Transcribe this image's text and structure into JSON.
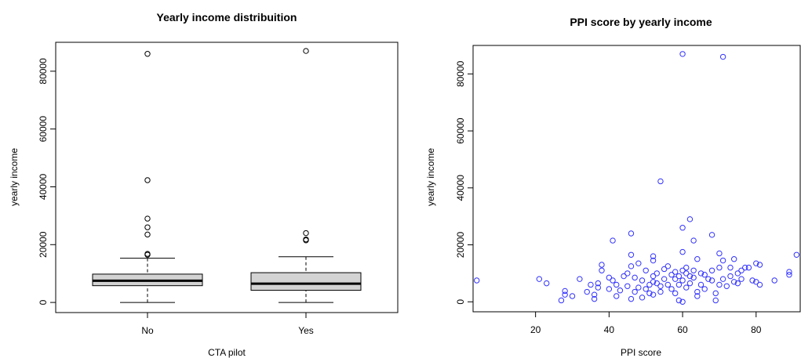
{
  "chart_data": [
    {
      "type": "box",
      "title": "Yearly income distribuition",
      "xlabel": "CTA pilot",
      "ylabel": "yearly income",
      "ylim": [
        -3500,
        90000
      ],
      "y_ticks": [
        "0",
        "20000",
        "40000",
        "60000",
        "80000"
      ],
      "categories": [
        "No",
        "Yes"
      ],
      "grid": false,
      "boxes": [
        {
          "category": "No",
          "min": 0,
          "q1": 5800,
          "median": 7500,
          "q3": 9800,
          "whisker_high": 15300,
          "outliers": [
            16500,
            16800,
            23500,
            26000,
            29000,
            42300,
            86000
          ]
        },
        {
          "category": "Yes",
          "min": 0,
          "q1": 4200,
          "median": 6500,
          "q3": 10300,
          "whisker_high": 15800,
          "outliers": [
            21500,
            21800,
            24000,
            87000
          ]
        }
      ],
      "box_fill": "#d3d3d3"
    },
    {
      "type": "scatter",
      "title": "PPI score by yearly income",
      "xlabel": "PPI score",
      "ylabel": "yearly income",
      "xlim": [
        3,
        92
      ],
      "ylim": [
        -3500,
        90000
      ],
      "x_ticks": [
        "20",
        "40",
        "60",
        "80"
      ],
      "y_ticks": [
        "0",
        "20000",
        "40000",
        "60000",
        "80000"
      ],
      "grid": false,
      "point_color": "#3333ff",
      "points": [
        [
          4,
          7500
        ],
        [
          21,
          8000
        ],
        [
          23,
          6500
        ],
        [
          27,
          500
        ],
        [
          28,
          2500
        ],
        [
          28,
          3800
        ],
        [
          30,
          2000
        ],
        [
          32,
          8000
        ],
        [
          34,
          3500
        ],
        [
          35,
          6000
        ],
        [
          36,
          1000
        ],
        [
          36,
          2500
        ],
        [
          37,
          6500
        ],
        [
          37,
          5000
        ],
        [
          38,
          13000
        ],
        [
          38,
          11000
        ],
        [
          40,
          8500
        ],
        [
          40,
          4500
        ],
        [
          41,
          21500
        ],
        [
          41,
          7500
        ],
        [
          42,
          6000
        ],
        [
          42,
          2000
        ],
        [
          43,
          4000
        ],
        [
          44,
          9000
        ],
        [
          45,
          10000
        ],
        [
          45,
          5500
        ],
        [
          46,
          24000
        ],
        [
          46,
          16500
        ],
        [
          46,
          12500
        ],
        [
          46,
          1000
        ],
        [
          47,
          8500
        ],
        [
          47,
          3500
        ],
        [
          48,
          13500
        ],
        [
          48,
          5000
        ],
        [
          49,
          7500
        ],
        [
          49,
          1500
        ],
        [
          50,
          11000
        ],
        [
          50,
          4500
        ],
        [
          51,
          3000
        ],
        [
          51,
          6000
        ],
        [
          52,
          14500
        ],
        [
          52,
          16000
        ],
        [
          52,
          9000
        ],
        [
          52,
          7000
        ],
        [
          52,
          2500
        ],
        [
          53,
          10000
        ],
        [
          53,
          6500
        ],
        [
          54,
          42300
        ],
        [
          54,
          5500
        ],
        [
          54,
          3500
        ],
        [
          55,
          11500
        ],
        [
          55,
          8000
        ],
        [
          56,
          12500
        ],
        [
          56,
          6000
        ],
        [
          57,
          9500
        ],
        [
          57,
          4500
        ],
        [
          58,
          10500
        ],
        [
          58,
          8000
        ],
        [
          58,
          3000
        ],
        [
          59,
          9000
        ],
        [
          59,
          6000
        ],
        [
          59,
          500
        ],
        [
          60,
          87000
        ],
        [
          60,
          26000
        ],
        [
          60,
          17500
        ],
        [
          60,
          11000
        ],
        [
          60,
          7500
        ],
        [
          60,
          0
        ],
        [
          61,
          10000
        ],
        [
          61,
          12000
        ],
        [
          61,
          5000
        ],
        [
          62,
          29000
        ],
        [
          62,
          9000
        ],
        [
          62,
          6500
        ],
        [
          63,
          21500
        ],
        [
          63,
          11000
        ],
        [
          63,
          8500
        ],
        [
          64,
          15000
        ],
        [
          64,
          3500
        ],
        [
          64,
          2000
        ],
        [
          65,
          10000
        ],
        [
          65,
          6000
        ],
        [
          66,
          9500
        ],
        [
          66,
          4500
        ],
        [
          67,
          8000
        ],
        [
          68,
          23500
        ],
        [
          68,
          11000
        ],
        [
          68,
          7500
        ],
        [
          69,
          3000
        ],
        [
          69,
          500
        ],
        [
          70,
          17000
        ],
        [
          70,
          12000
        ],
        [
          70,
          6000
        ],
        [
          71,
          86000
        ],
        [
          71,
          14500
        ],
        [
          71,
          8000
        ],
        [
          72,
          5500
        ],
        [
          73,
          12000
        ],
        [
          73,
          9000
        ],
        [
          74,
          15000
        ],
        [
          74,
          7000
        ],
        [
          75,
          10000
        ],
        [
          75,
          6500
        ],
        [
          76,
          11000
        ],
        [
          76,
          8000
        ],
        [
          77,
          12000
        ],
        [
          78,
          12000
        ],
        [
          79,
          7500
        ],
        [
          80,
          13500
        ],
        [
          80,
          7000
        ],
        [
          81,
          13000
        ],
        [
          81,
          6000
        ],
        [
          85,
          7500
        ],
        [
          89,
          10500
        ],
        [
          89,
          9500
        ],
        [
          91,
          16500
        ]
      ]
    }
  ]
}
